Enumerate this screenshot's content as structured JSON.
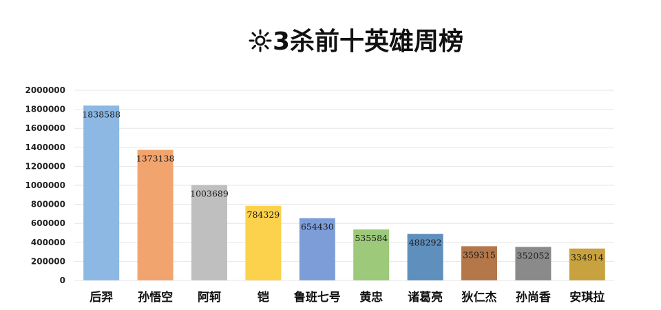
{
  "chart_data": {
    "type": "bar",
    "title": "3杀前十英雄周榜",
    "title_icon": "sun-icon",
    "xlabel": "",
    "ylabel": "",
    "ylim": [
      0,
      2000000
    ],
    "yticks": [
      0,
      200000,
      400000,
      600000,
      800000,
      1000000,
      1200000,
      1400000,
      1600000,
      1800000,
      2000000
    ],
    "grid": true,
    "legend": "none",
    "categories": [
      "后羿",
      "孙悟空",
      "阿轲",
      "铠",
      "鲁班七号",
      "黄忠",
      "诸葛亮",
      "狄仁杰",
      "孙尚香",
      "安琪拉"
    ],
    "values": [
      1838588,
      1373138,
      1003689,
      784329,
      654430,
      535584,
      488292,
      359315,
      352052,
      334914
    ],
    "colors": [
      "#8cb8e3",
      "#f1a46e",
      "#bfbfbf",
      "#fcd14b",
      "#7d9dd9",
      "#9cc97a",
      "#5f8fbd",
      "#b3774a",
      "#8a8a8a",
      "#c8a23f"
    ]
  }
}
